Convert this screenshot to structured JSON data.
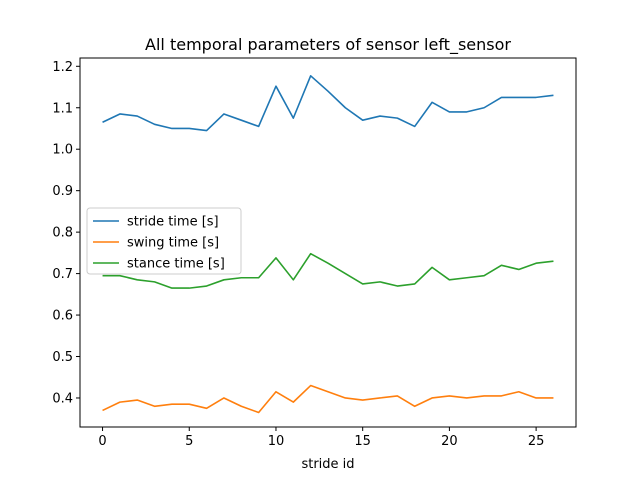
{
  "chart_data": {
    "type": "line",
    "title": "All temporal parameters of sensor left_sensor",
    "xlabel": "stride id",
    "ylabel": "",
    "xlim": [
      -1.3,
      27.3
    ],
    "ylim": [
      0.33,
      1.22
    ],
    "xticks": [
      0,
      5,
      10,
      15,
      20,
      25
    ],
    "yticks": [
      0.4,
      0.5,
      0.6,
      0.7,
      0.8,
      0.9,
      1.0,
      1.1,
      1.2
    ],
    "grid": false,
    "legend_position": "center-left",
    "x": [
      0,
      1,
      2,
      3,
      4,
      5,
      6,
      7,
      8,
      9,
      10,
      11,
      12,
      13,
      14,
      15,
      16,
      17,
      18,
      19,
      20,
      21,
      22,
      23,
      24,
      25,
      26
    ],
    "series": [
      {
        "name": "stride time [s]",
        "color": "#1f77b4",
        "values": [
          1.065,
          1.085,
          1.08,
          1.06,
          1.05,
          1.05,
          1.045,
          1.085,
          1.07,
          1.055,
          1.152,
          1.075,
          1.177,
          1.14,
          1.1,
          1.07,
          1.08,
          1.075,
          1.055,
          1.113,
          1.09,
          1.09,
          1.1,
          1.125,
          1.125,
          1.125,
          1.13
        ]
      },
      {
        "name": "swing time [s]",
        "color": "#ff7f0e",
        "values": [
          0.37,
          0.39,
          0.395,
          0.38,
          0.385,
          0.385,
          0.375,
          0.4,
          0.38,
          0.365,
          0.415,
          0.39,
          0.43,
          0.415,
          0.4,
          0.395,
          0.4,
          0.405,
          0.38,
          0.4,
          0.405,
          0.4,
          0.405,
          0.405,
          0.415,
          0.4,
          0.4
        ]
      },
      {
        "name": "stance time [s]",
        "color": "#2ca02c",
        "values": [
          0.695,
          0.695,
          0.685,
          0.68,
          0.665,
          0.665,
          0.67,
          0.685,
          0.69,
          0.69,
          0.738,
          0.685,
          0.748,
          0.725,
          0.7,
          0.675,
          0.68,
          0.67,
          0.675,
          0.715,
          0.685,
          0.69,
          0.695,
          0.72,
          0.71,
          0.725,
          0.73
        ]
      }
    ]
  }
}
